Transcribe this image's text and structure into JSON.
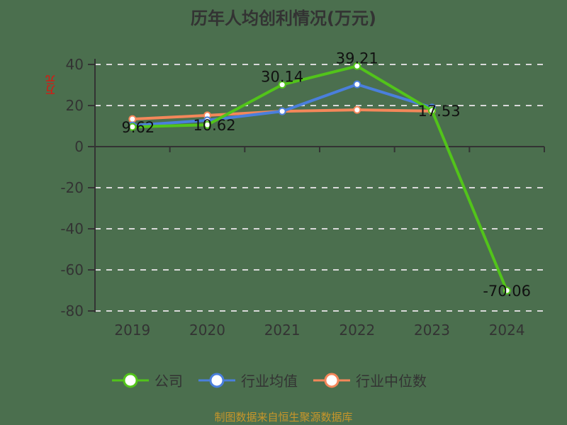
{
  "chart_data": {
    "type": "line",
    "title": "历年人均创利情况(万元)",
    "ylabel": "万元",
    "xlabel": "",
    "categories": [
      "2019",
      "2020",
      "2021",
      "2022",
      "2023",
      "2024"
    ],
    "ylim": [
      -80,
      40
    ],
    "yticks": [
      40,
      20,
      0,
      -20,
      -40,
      -60,
      -80
    ],
    "grid": true,
    "legend_position": "bottom",
    "series": [
      {
        "name": "公司",
        "color": "#52c41a",
        "values": [
          9.62,
          10.62,
          30.14,
          39.21,
          17.53,
          -70.06
        ],
        "labels": [
          "9.62",
          "10.62",
          "30.14",
          "39.21",
          "17.53",
          "-70.06"
        ]
      },
      {
        "name": "行业均值",
        "color": "#4a7fdc",
        "values": [
          10.3,
          12.8,
          17.2,
          30.3,
          19.0,
          null
        ]
      },
      {
        "name": "行业中位数",
        "color": "#f4875a",
        "values": [
          13.4,
          15.2,
          17.2,
          17.9,
          17.3,
          null
        ]
      }
    ]
  },
  "header": {
    "title": "历年人均创利情况(万元)"
  },
  "axis": {
    "unit": "万元"
  },
  "legend": [
    {
      "label": "公司",
      "color": "#52c41a"
    },
    {
      "label": "行业均值",
      "color": "#4a7fdc"
    },
    {
      "label": "行业中位数",
      "color": "#f4875a"
    }
  ],
  "footer": {
    "source": "制图数据来自恒生聚源数据库"
  }
}
